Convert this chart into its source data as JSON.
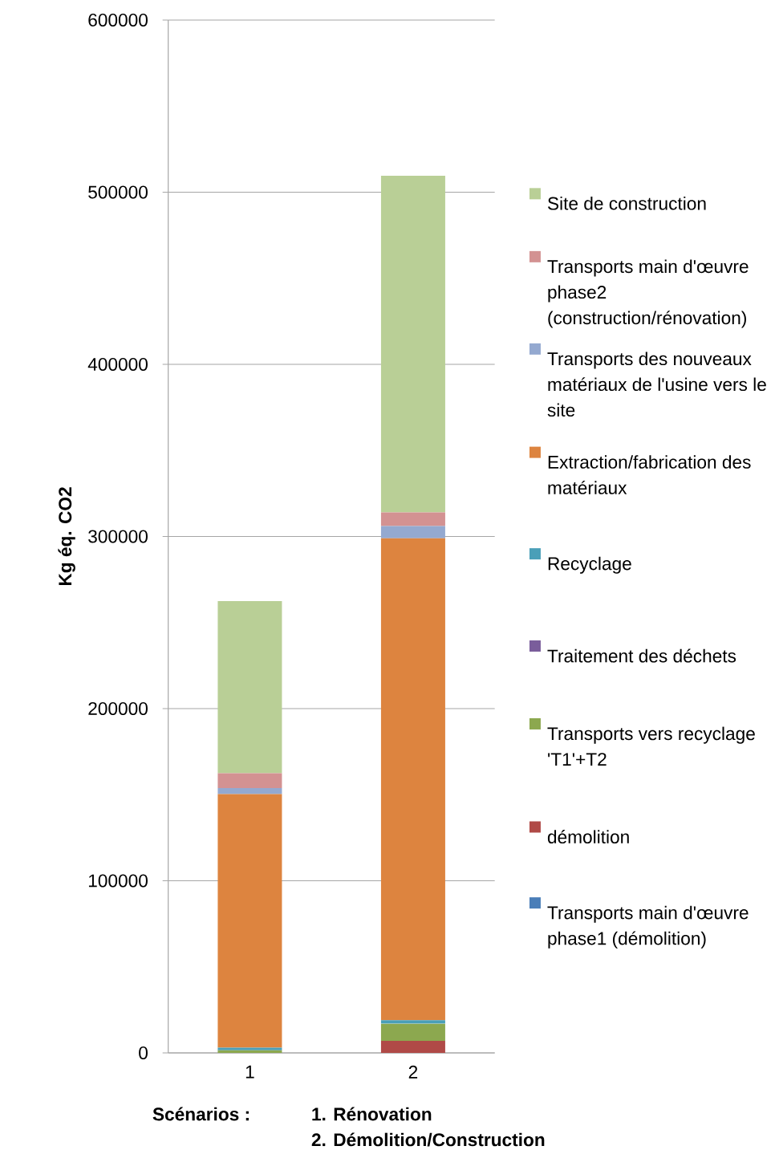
{
  "chart_data": {
    "type": "bar",
    "stacked": true,
    "ylabel": "Kg éq. CO2",
    "categories": [
      "1",
      "2"
    ],
    "ylim": [
      0,
      600000
    ],
    "yticks": [
      0,
      100000,
      200000,
      300000,
      400000,
      500000,
      600000
    ],
    "grid": "y",
    "legend": "right",
    "series": [
      {
        "name": "Transports main d'œuvre phase1 (démolition)",
        "color": "#4a7eb8",
        "values": [
          0,
          0
        ]
      },
      {
        "name": "démolition",
        "color": "#b04a47",
        "values": [
          0,
          7000
        ]
      },
      {
        "name": "Transports vers recyclage 'T1'+T2",
        "color": "#8ca84f",
        "values": [
          1500,
          10000
        ]
      },
      {
        "name": "Traitement des déchets",
        "color": "#7a5d9b",
        "values": [
          0,
          0
        ]
      },
      {
        "name": "Recyclage",
        "color": "#4a9fb8",
        "values": [
          1500,
          2000
        ]
      },
      {
        "name": "Extraction/fabrication des matériaux",
        "color": "#dd843f",
        "values": [
          147300,
          280000
        ]
      },
      {
        "name": "Transports des nouveaux matériaux de l'usine vers le site",
        "color": "#94a9d0",
        "values": [
          3500,
          7000
        ]
      },
      {
        "name": "Transports main d'œuvre phase2 (construction/rénovation)",
        "color": "#d39292",
        "values": [
          8700,
          8000
        ]
      },
      {
        "name": "Site de construction",
        "color": "#b9cf96",
        "values": [
          100000,
          195500
        ]
      }
    ],
    "annotations": [
      "Scénarios :",
      "1. Rénovation",
      "2. Démolition/Construction"
    ]
  }
}
